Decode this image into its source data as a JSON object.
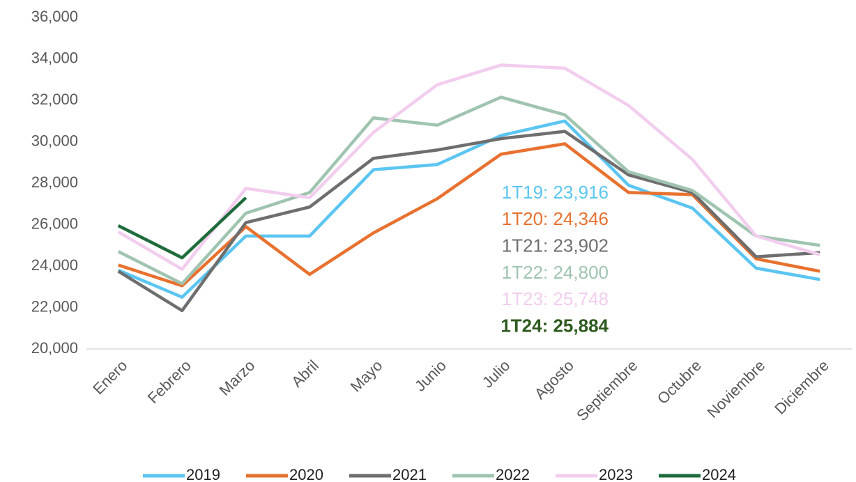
{
  "chart_data": {
    "type": "line",
    "categories": [
      "Enero",
      "Febrero",
      "Marzo",
      "Abril",
      "Mayo",
      "Junio",
      "Julio",
      "Agosto",
      "Septiembre",
      "Octubre",
      "Noviembre",
      "Diciembre"
    ],
    "series": [
      {
        "name": "2019",
        "color": "#5bc5f2",
        "values": [
          23800,
          22500,
          25450,
          25450,
          28650,
          28900,
          30300,
          31000,
          27900,
          26800,
          23900,
          23350
        ]
      },
      {
        "name": "2020",
        "color": "#e8712f",
        "values": [
          24050,
          23050,
          25900,
          23600,
          25600,
          27250,
          29400,
          29900,
          27550,
          27450,
          24350,
          23750
        ]
      },
      {
        "name": "2021",
        "color": "#6e6e6e",
        "values": [
          23750,
          21850,
          26100,
          26850,
          29200,
          29600,
          30150,
          30500,
          28400,
          27550,
          24450,
          24650
        ]
      },
      {
        "name": "2022",
        "color": "#9fc4b0",
        "values": [
          24700,
          23150,
          26550,
          27550,
          31150,
          30800,
          32150,
          31300,
          28550,
          27650,
          25450,
          25000
        ]
      },
      {
        "name": "2023",
        "color": "#f2cdee",
        "values": [
          25650,
          23850,
          27750,
          27300,
          30450,
          32750,
          33700,
          33550,
          31750,
          29150,
          25450,
          24550
        ]
      },
      {
        "name": "2024",
        "color": "#1e6b3c",
        "values": [
          25950,
          24400,
          27300,
          null,
          null,
          null,
          null,
          null,
          null,
          null,
          null,
          null
        ]
      }
    ],
    "ylim": [
      20000,
      36000
    ],
    "yticks": [
      {
        "value": 20000,
        "label": "20,000"
      },
      {
        "value": 22000,
        "label": "22,000"
      },
      {
        "value": 24000,
        "label": "24,000"
      },
      {
        "value": 26000,
        "label": "26,000"
      },
      {
        "value": 28000,
        "label": "28,000"
      },
      {
        "value": 30000,
        "label": "30,000"
      },
      {
        "value": 32000,
        "label": "32,000"
      },
      {
        "value": 34000,
        "label": "34,000"
      },
      {
        "value": 36000,
        "label": "36,000"
      }
    ],
    "grid": false,
    "legend": "bottom",
    "annotations": [
      {
        "text": "1T19: 23,916",
        "color": "#5bc5f2"
      },
      {
        "text": "1T20: 24,346",
        "color": "#e8712f"
      },
      {
        "text": "1T21: 23,902",
        "color": "#6e6e6e"
      },
      {
        "text": "1T22: 24,800",
        "color": "#9fc4b0"
      },
      {
        "text": "1T23: 25,748",
        "color": "#f2cdee"
      },
      {
        "text": "1T24: 25,884",
        "color": "#2d5a1e"
      }
    ]
  }
}
